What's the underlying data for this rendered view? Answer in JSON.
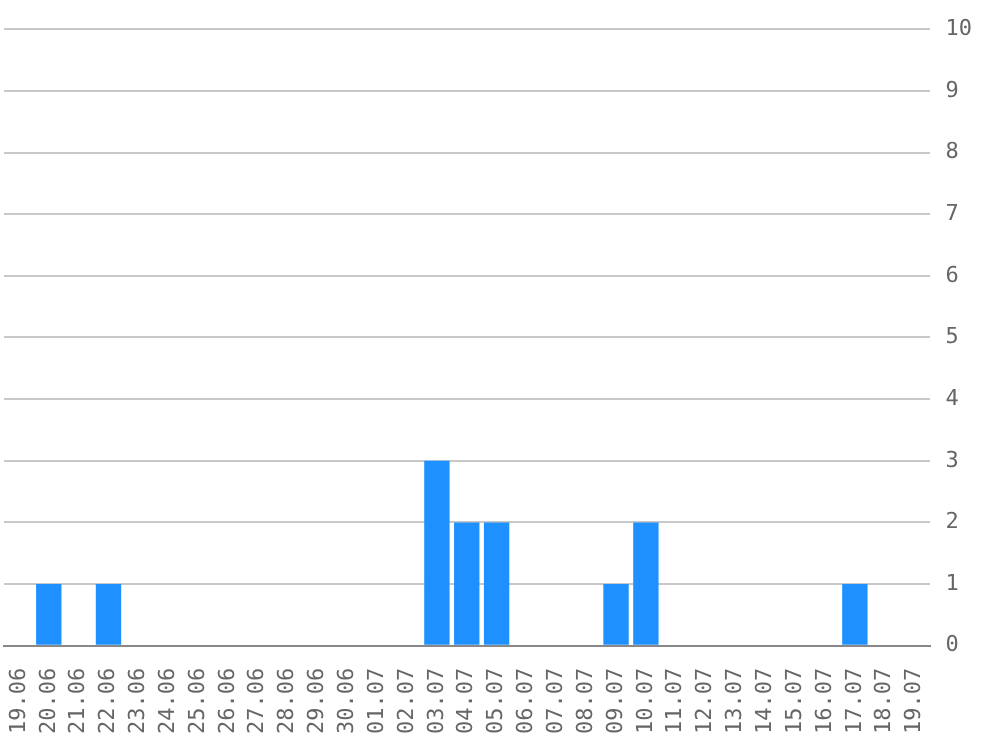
{
  "chart_data": {
    "type": "bar",
    "categories": [
      "19.06",
      "20.06",
      "21.06",
      "22.06",
      "23.06",
      "24.06",
      "25.06",
      "26.06",
      "27.06",
      "28.06",
      "29.06",
      "30.06",
      "01.07",
      "02.07",
      "03.07",
      "04.07",
      "05.07",
      "06.07",
      "07.07",
      "08.07",
      "09.07",
      "10.07",
      "11.07",
      "12.07",
      "13.07",
      "14.07",
      "15.07",
      "16.07",
      "17.07",
      "18.07",
      "19.07"
    ],
    "values": [
      0,
      1,
      0,
      1,
      0,
      0,
      0,
      0,
      0,
      0,
      0,
      0,
      0,
      0,
      3,
      2,
      2,
      0,
      0,
      0,
      1,
      2,
      0,
      0,
      0,
      0,
      0,
      0,
      1,
      0,
      0
    ],
    "color": "#1e90ff",
    "ylim": [
      0,
      10
    ],
    "yticks": [
      0,
      1,
      2,
      3,
      4,
      5,
      6,
      7,
      8,
      9,
      10
    ],
    "grid": "y",
    "legend": false
  }
}
